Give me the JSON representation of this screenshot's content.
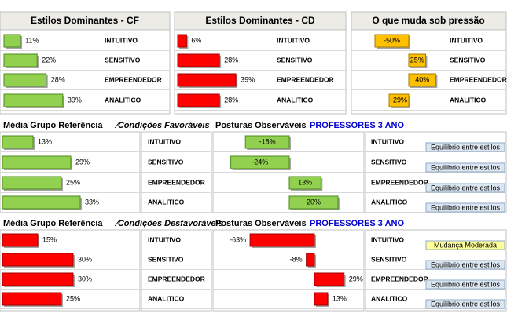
{
  "sections": [
    {
      "title": "Média Grupo Referência",
      "subtitle": "⁄Condições Favoráveis",
      "title2": "Posturas Observáveis",
      "group": "PROFESSORES 3 ANO"
    },
    {
      "title": "Média Grupo Referência",
      "subtitle": "⁄Condições Desfavoráveis",
      "title2": "Posturas Observáveis",
      "group": "PROFESSORES 3 ANO"
    }
  ],
  "chart_data": [
    {
      "type": "bar",
      "title": "Estilos Dominantes - CF",
      "categories": [
        "INTUITIVO",
        "SENSITIVO",
        "EMPREENDEDOR",
        "ANALITICO"
      ],
      "values": [
        11,
        22,
        28,
        39
      ],
      "value_labels": [
        "11%",
        "22%",
        "28%",
        "39%"
      ],
      "color": "#92d050"
    },
    {
      "type": "bar",
      "title": "Estilos Dominantes - CD",
      "categories": [
        "INTUITIVO",
        "SENSITIVO",
        "EMPREENDEDOR",
        "ANALITICO"
      ],
      "values": [
        6,
        28,
        39,
        28
      ],
      "value_labels": [
        "6%",
        "28%",
        "39%",
        "28%"
      ],
      "color": "#ff0000"
    },
    {
      "type": "bar",
      "title": "O que muda sob pressão",
      "categories": [
        "INTUITIVO",
        "SENSITIVO",
        "EMPREENDEDOR",
        "ANALITICO"
      ],
      "values": [
        -50,
        25,
        40,
        -29
      ],
      "value_labels": [
        "-50%",
        "25%",
        "40%",
        "-29%"
      ],
      "color": "#ffc000"
    },
    {
      "type": "bar",
      "categories": [
        "INTUITIVO",
        "SENSITIVO",
        "EMPREENDEDOR",
        "ANALITICO"
      ],
      "values": [
        13,
        29,
        25,
        33
      ],
      "value_labels": [
        "13%",
        "29%",
        "25%",
        "33%"
      ],
      "color": "#92d050"
    },
    {
      "type": "bar",
      "categories": [
        "INTUITIVO",
        "SENSITIVO",
        "EMPREENDEDOR",
        "ANALITICO"
      ],
      "values": [
        -18,
        -24,
        13,
        20
      ],
      "value_labels": [
        "-18%",
        "-24%",
        "13%",
        "20%"
      ],
      "color": "#92d050"
    },
    {
      "type": "bar",
      "categories": [
        "INTUITIVO",
        "SENSITIVO",
        "EMPREENDEDOR",
        "ANALITICO"
      ],
      "values": [
        15,
        30,
        30,
        25
      ],
      "value_labels": [
        "15%",
        "30%",
        "30%",
        "25%"
      ],
      "color": "#ff0000"
    },
    {
      "type": "bar",
      "categories": [
        "INTUITIVO",
        "SENSITIVO",
        "EMPREENDEDOR",
        "ANALITICO"
      ],
      "values": [
        -63,
        -8,
        29,
        13
      ],
      "value_labels": [
        "-63%",
        "-8%",
        "29%",
        "13%"
      ],
      "color": "#ff0000"
    }
  ],
  "status": [
    [
      {
        "text": "Equilibrio entre estilos",
        "color": "#dce6f1"
      },
      {
        "text": "Equilibrio entre estilos",
        "color": "#dce6f1"
      },
      {
        "text": "Equilibrio entre estilos",
        "color": "#dce6f1"
      },
      {
        "text": "Equilibrio entre estilos",
        "color": "#dce6f1"
      }
    ],
    [
      {
        "text": "Mudança Moderada",
        "color": "#ffff99"
      },
      {
        "text": "Equilibrio entre estilos",
        "color": "#dce6f1"
      },
      {
        "text": "Equilibrio entre estilos",
        "color": "#dce6f1"
      },
      {
        "text": "Equilibrio entre estilos",
        "color": "#dce6f1"
      }
    ]
  ]
}
